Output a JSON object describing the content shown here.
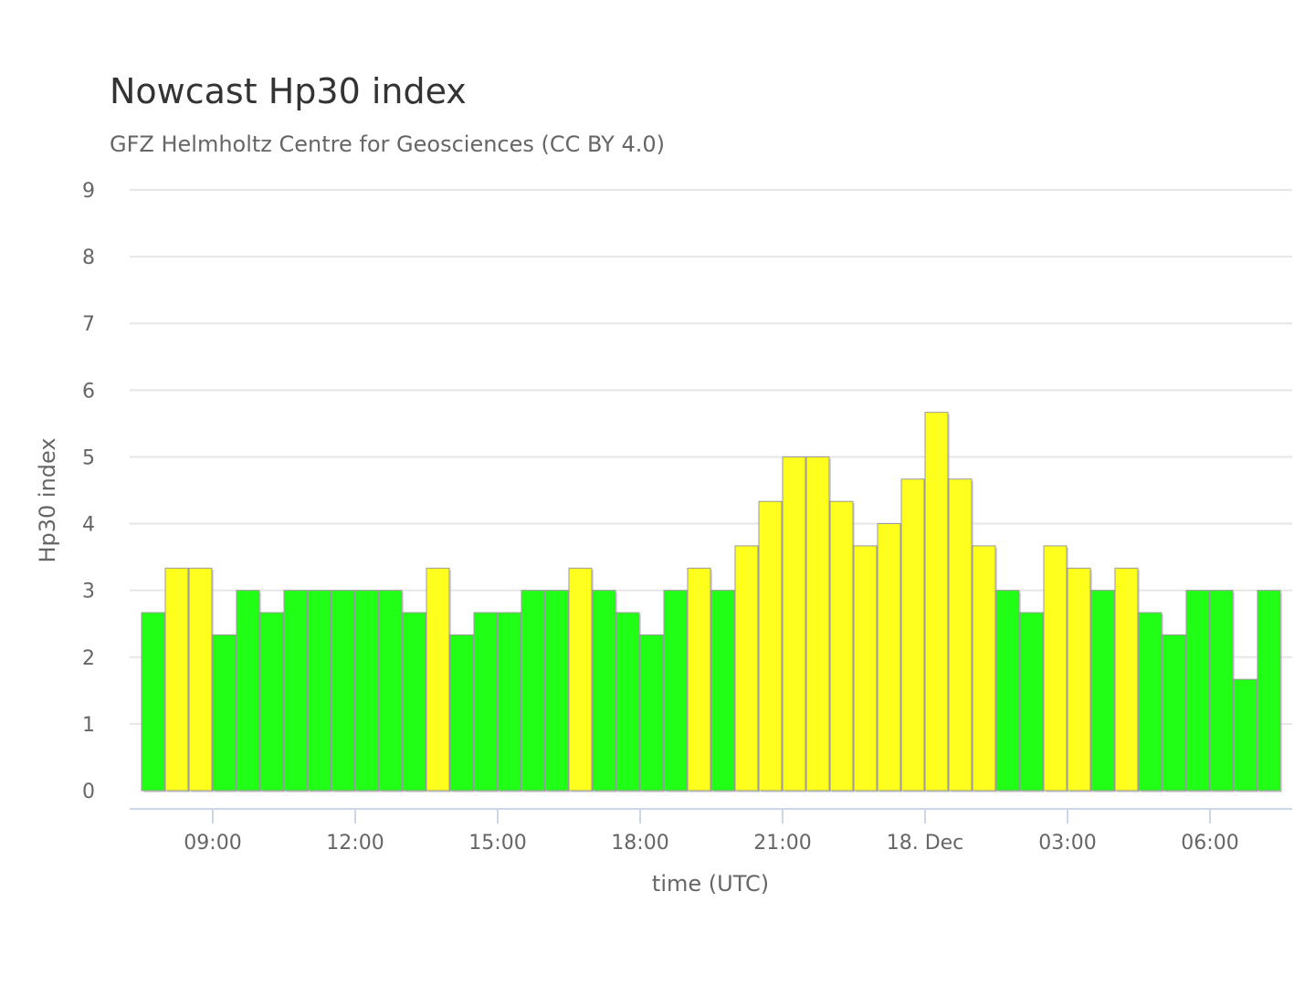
{
  "chart_data": {
    "type": "bar",
    "title": "Nowcast Hp30 index",
    "subtitle": "GFZ Helmholtz Centre for Geosciences (CC BY 4.0)",
    "xlabel": "time (UTC)",
    "ylabel": "Hp30 index",
    "ylim": [
      0,
      9
    ],
    "yticks": [
      "0",
      "1",
      "2",
      "3",
      "4",
      "5",
      "6",
      "7",
      "8",
      "9"
    ],
    "grid": true,
    "interval_minutes": 30,
    "first_bar_start": "07:30",
    "xticks": [
      {
        "label": "09:00",
        "hours_from_start": 1.5
      },
      {
        "label": "12:00",
        "hours_from_start": 4.5
      },
      {
        "label": "15:00",
        "hours_from_start": 7.5
      },
      {
        "label": "18:00",
        "hours_from_start": 10.5
      },
      {
        "label": "21:00",
        "hours_from_start": 13.5
      },
      {
        "label": "18. Dec",
        "hours_from_start": 16.5
      },
      {
        "label": "03:00",
        "hours_from_start": 19.5
      },
      {
        "label": "06:00",
        "hours_from_start": 22.5
      }
    ],
    "values": [
      2.667,
      3.333,
      3.333,
      2.333,
      3,
      2.667,
      3,
      3,
      3,
      3,
      3,
      2.667,
      3.333,
      2.333,
      2.667,
      2.667,
      3,
      3,
      3.333,
      3,
      2.667,
      2.333,
      3,
      3.333,
      3,
      3.667,
      4.333,
      5,
      5,
      4.333,
      3.667,
      4,
      4.667,
      5.667,
      4.667,
      3.667,
      3,
      2.667,
      3.667,
      3.333,
      3,
      3.333,
      2.667,
      2.333,
      3,
      3,
      1.667,
      3
    ],
    "colors": {
      "quiet": "#22ff16",
      "active": "#ffff1e",
      "active_threshold": 3.333
    }
  }
}
